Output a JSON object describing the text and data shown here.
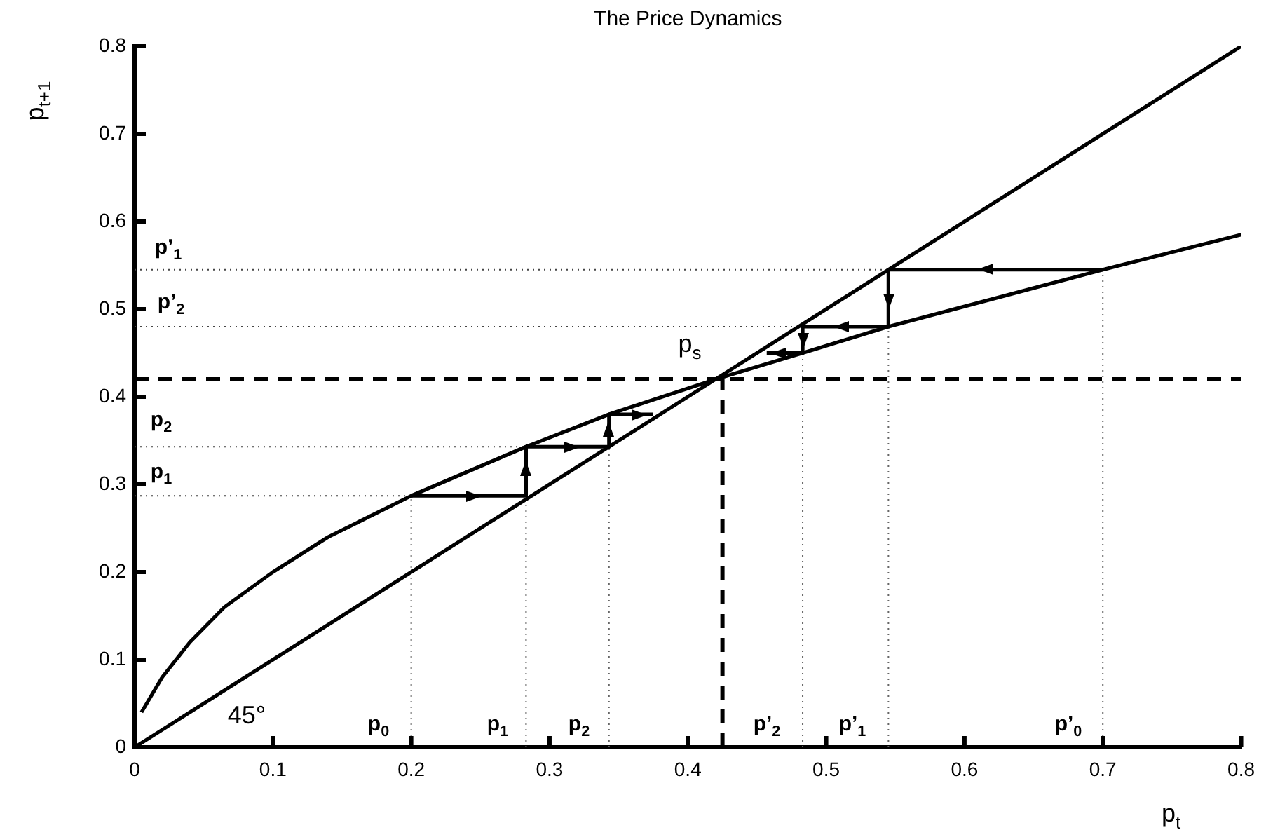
{
  "chart_data": {
    "type": "line",
    "title": "The Price Dynamics",
    "xlabel": "p$_{t}$",
    "ylabel": "p$_{t+1}$",
    "xlim": [
      0,
      0.8
    ],
    "ylim": [
      0,
      0.8
    ],
    "xticks": [
      0,
      0.1,
      0.2,
      0.3,
      0.4,
      0.5,
      0.6,
      0.7,
      0.8
    ],
    "yticks": [
      0,
      0.1,
      0.2,
      0.3,
      0.4,
      0.5,
      0.6,
      0.7,
      0.8
    ],
    "grid": false,
    "legend": false,
    "marker": "none",
    "series": [
      {
        "color": "#000000",
        "line_style": "solid",
        "x": [
          0.005,
          0.02,
          0.04,
          0.065,
          0.1,
          0.14,
          0.2,
          0.283,
          0.343,
          0.42,
          0.483,
          0.545,
          0.7,
          0.8
        ],
        "values": [
          0.04,
          0.08,
          0.12,
          0.16,
          0.2,
          0.24,
          0.287,
          0.343,
          0.38,
          0.42,
          0.45,
          0.48,
          0.545,
          0.585
        ]
      },
      {
        "color": "#000000",
        "line_style": "solid",
        "x": [
          0,
          0.8
        ],
        "values": [
          0,
          0.8
        ]
      },
      {
        "color": "#000000",
        "line_style": "solid",
        "x": [
          0.2,
          0.283,
          0.283,
          0.343,
          0.343,
          0.375
        ],
        "values": [
          0.287,
          0.287,
          0.343,
          0.343,
          0.38,
          0.38
        ]
      },
      {
        "color": "#000000",
        "line_style": "solid",
        "x": [
          0.7,
          0.545,
          0.545,
          0.483,
          0.483,
          0.457
        ],
        "values": [
          0.545,
          0.545,
          0.48,
          0.48,
          0.45,
          0.45
        ]
      },
      {
        "color": "#000000",
        "line_style": "dashed",
        "x": [
          0.425,
          0.425
        ],
        "values": [
          0,
          0.42
        ]
      },
      {
        "color": "#444444",
        "line_style": "dotted",
        "x": [
          0,
          0.545
        ],
        "values": [
          0.545,
          0.545
        ]
      },
      {
        "color": "#444444",
        "line_style": "dotted",
        "x": [
          0,
          0.483
        ],
        "values": [
          0.48,
          0.48
        ]
      },
      {
        "color": "#444444",
        "line_style": "dotted",
        "x": [
          0,
          0.283
        ],
        "values": [
          0.343,
          0.343
        ]
      },
      {
        "color": "#444444",
        "line_style": "dotted",
        "x": [
          0,
          0.2
        ],
        "values": [
          0.287,
          0.287
        ]
      },
      {
        "color": "#666666",
        "line_style": "dotted",
        "x": [
          0.2,
          0.2
        ],
        "values": [
          0,
          0.287
        ]
      },
      {
        "color": "#666666",
        "line_style": "dotted",
        "x": [
          0.283,
          0.283
        ],
        "values": [
          0,
          0.287
        ]
      },
      {
        "color": "#666666",
        "line_style": "dotted",
        "x": [
          0.343,
          0.343
        ],
        "values": [
          0,
          0.343
        ]
      },
      {
        "color": "#666666",
        "line_style": "dotted",
        "x": [
          0.483,
          0.483
        ],
        "values": [
          0,
          0.45
        ]
      },
      {
        "color": "#666666",
        "line_style": "dotted",
        "x": [
          0.545,
          0.545
        ],
        "values": [
          0,
          0.48
        ]
      },
      {
        "color": "#666666",
        "line_style": "dotted",
        "x": [
          0.7,
          0.7
        ],
        "values": [
          0,
          0.545
        ]
      }
    ],
    "ref_lines": [
      {
        "axis": "y",
        "value": 0.42,
        "color": "#000000",
        "line_style": "dashed"
      }
    ],
    "annotations": [
      "p$_{0}$",
      "p$_{1}$",
      "p$_{2}$",
      "p’$_{2}$",
      "p’$_{1}$",
      "p’$_{0}$",
      "p’$_{1}$",
      "p’$_{2}$",
      "p$_{2}$",
      "p$_{1}$",
      "p$_{s}$",
      "45°"
    ]
  }
}
